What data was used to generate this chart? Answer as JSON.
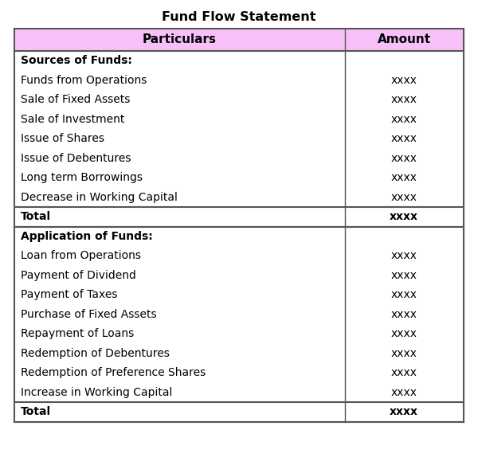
{
  "title": "Fund Flow Statement",
  "header": [
    "Particulars",
    "Amount"
  ],
  "header_bg": "#f8c0f8",
  "rows": [
    {
      "label": "Sources of Funds:",
      "value": "",
      "bold": true,
      "total_row": false,
      "section_header": true
    },
    {
      "label": "Funds from Operations",
      "value": "xxxx",
      "bold": false,
      "total_row": false,
      "section_header": false
    },
    {
      "label": "Sale of Fixed Assets",
      "value": "xxxx",
      "bold": false,
      "total_row": false,
      "section_header": false
    },
    {
      "label": "Sale of Investment",
      "value": "xxxx",
      "bold": false,
      "total_row": false,
      "section_header": false
    },
    {
      "label": "Issue of Shares",
      "value": "xxxx",
      "bold": false,
      "total_row": false,
      "section_header": false
    },
    {
      "label": "Issue of Debentures",
      "value": "xxxx",
      "bold": false,
      "total_row": false,
      "section_header": false
    },
    {
      "label": "Long term Borrowings",
      "value": "xxxx",
      "bold": false,
      "total_row": false,
      "section_header": false
    },
    {
      "label": "Decrease in Working Capital",
      "value": "xxxx",
      "bold": false,
      "total_row": false,
      "section_header": false
    },
    {
      "label": "Total",
      "value": "xxxx",
      "bold": true,
      "total_row": true,
      "section_header": false
    },
    {
      "label": "Application of Funds:",
      "value": "",
      "bold": true,
      "total_row": false,
      "section_header": true
    },
    {
      "label": "Loan from Operations",
      "value": "xxxx",
      "bold": false,
      "total_row": false,
      "section_header": false
    },
    {
      "label": "Payment of Dividend",
      "value": "xxxx",
      "bold": false,
      "total_row": false,
      "section_header": false
    },
    {
      "label": "Payment of Taxes",
      "value": "xxxx",
      "bold": false,
      "total_row": false,
      "section_header": false
    },
    {
      "label": "Purchase of Fixed Assets",
      "value": "xxxx",
      "bold": false,
      "total_row": false,
      "section_header": false
    },
    {
      "label": "Repayment of Loans",
      "value": "xxxx",
      "bold": false,
      "total_row": false,
      "section_header": false
    },
    {
      "label": "Redemption of Debentures",
      "value": "xxxx",
      "bold": false,
      "total_row": false,
      "section_header": false
    },
    {
      "label": "Redemption of Preference Shares",
      "value": "xxxx",
      "bold": false,
      "total_row": false,
      "section_header": false
    },
    {
      "label": "Increase in Working Capital",
      "value": "xxxx",
      "bold": false,
      "total_row": false,
      "section_header": false
    },
    {
      "label": "Total",
      "value": "xxxx",
      "bold": true,
      "total_row": true,
      "section_header": false
    }
  ],
  "col_split": 0.735,
  "title_fontsize": 11.5,
  "header_fontsize": 11,
  "row_fontsize": 10,
  "bg_color": "#ffffff",
  "border_color": "#555555"
}
